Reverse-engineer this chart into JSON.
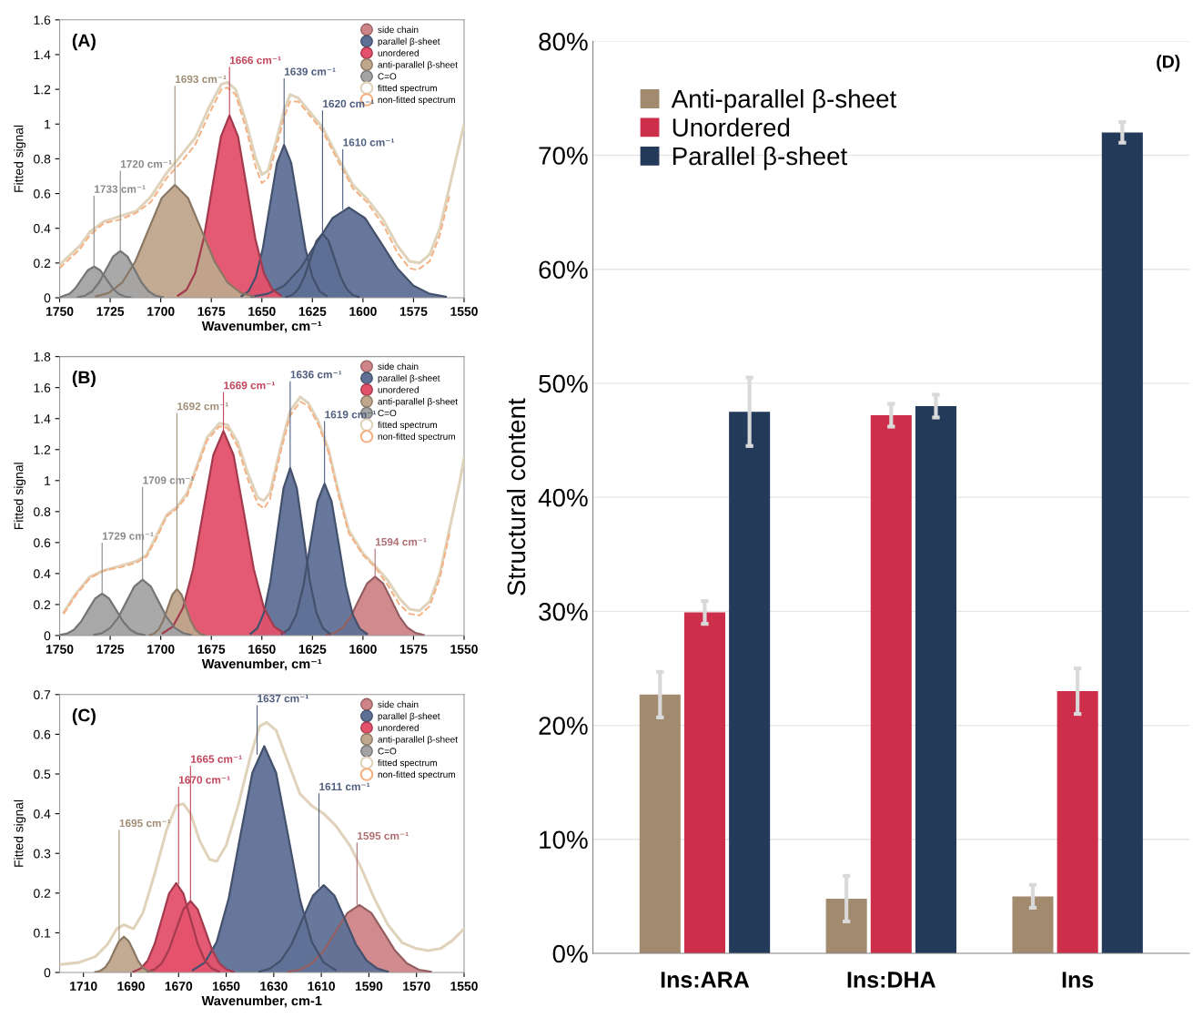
{
  "chart_data": [
    {
      "type": "area",
      "xlabel": "Wavenumber, cm⁻¹",
      "ylabel": "Fitted signal",
      "xlim": [
        1750,
        1550
      ],
      "xticks": [
        1750,
        1725,
        1700,
        1675,
        1650,
        1625,
        1600,
        1575,
        1550
      ],
      "ylim": [
        0,
        1.6
      ],
      "yticks": [
        0,
        0.2,
        0.4,
        0.6,
        0.8,
        1,
        1.2,
        1.4,
        1.6
      ],
      "legend": "top right",
      "grid": false,
      "annotations": [
        "(A)",
        {
          "text": "1733 cm⁻¹",
          "x": 1733,
          "y": 0.18
        },
        {
          "text": "1720 cm⁻¹",
          "x": 1720,
          "y": 0.27
        },
        {
          "text": "1693 cm⁻¹",
          "x": 1693,
          "y": 0.65
        },
        {
          "text": "1666 cm⁻¹",
          "x": 1666,
          "y": 1.05
        },
        {
          "text": "1639 cm⁻¹",
          "x": 1639,
          "y": 0.88
        },
        {
          "text": "1620 cm⁻¹",
          "x": 1620,
          "y": 0.37
        },
        {
          "text": "1610 cm⁻¹",
          "x": 1610,
          "y": 0.51
        }
      ],
      "series": [
        {
          "name": "side chain",
          "color": "#cf8487"
        },
        {
          "name": "parallel β-sheet",
          "color": "#5e7096",
          "x": [
            1655,
            1647,
            1639,
            1631,
            1623,
            1615,
            1607,
            1599,
            1591,
            1583,
            1575,
            1567,
            1559
          ],
          "values": [
            0.006,
            0.023,
            0.07,
            0.169,
            0.315,
            0.459,
            0.52,
            0.459,
            0.315,
            0.169,
            0.07,
            0.023,
            0.006
          ]
        },
        {
          "color": "#5f7197",
          "x": [
            1660,
            1656.5,
            1653,
            1649.5,
            1646,
            1642.5,
            1639,
            1635.5,
            1632,
            1628.5,
            1625,
            1621.5,
            1618
          ],
          "values": [
            0.01,
            0.039,
            0.119,
            0.286,
            0.534,
            0.777,
            0.88,
            0.777,
            0.534,
            0.286,
            0.119,
            0.039,
            0.01
          ]
        },
        {
          "color": "#5d6f95",
          "x": [
            1638,
            1635,
            1632,
            1629,
            1626,
            1623,
            1620,
            1617,
            1614,
            1611,
            1608,
            1605,
            1602
          ],
          "values": [
            0.004,
            0.016,
            0.05,
            0.12,
            0.224,
            0.327,
            0.37,
            0.327,
            0.224,
            0.12,
            0.05,
            0.016,
            0.004
          ]
        },
        {
          "name": "unordered",
          "color": "#e3516b",
          "x": [
            1691.5,
            1687.25,
            1683,
            1678.75,
            1674.5,
            1670.25,
            1666,
            1661.75,
            1657.5,
            1653.25,
            1649,
            1644.75,
            1640.5
          ],
          "values": [
            0.012,
            0.046,
            0.142,
            0.341,
            0.637,
            0.927,
            1.05,
            0.927,
            0.637,
            0.341,
            0.142,
            0.046,
            0.012
          ]
        },
        {
          "name": "anti-parallel β-sheet",
          "color": "#bfa78c",
          "x": [
            1732,
            1725.5,
            1719,
            1712.5,
            1706,
            1699.5,
            1693,
            1686.5,
            1680,
            1673.5,
            1667,
            1660.5,
            1654
          ],
          "values": [
            0.007,
            0.029,
            0.088,
            0.211,
            0.394,
            0.574,
            0.65,
            0.574,
            0.394,
            0.211,
            0.088,
            0.029,
            0.007
          ]
        },
        {
          "name": "C=O",
          "color": "#a3a3a3",
          "x": [
            1750,
            1745,
            1742,
            1739,
            1736,
            1733,
            1730,
            1727,
            1724,
            1721,
            1718,
            1715
          ],
          "values": [
            0.003,
            0.024,
            0.058,
            0.109,
            0.159,
            0.18,
            0.159,
            0.109,
            0.058,
            0.024,
            0.008,
            0.002
          ]
        },
        {
          "color": "#a4a4a4",
          "x": [
            1741,
            1737.5,
            1734,
            1730.5,
            1727,
            1723.5,
            1720,
            1716.5,
            1713,
            1709.5,
            1706,
            1702.5,
            1699
          ],
          "values": [
            0.003,
            0.012,
            0.037,
            0.088,
            0.164,
            0.238,
            0.27,
            0.238,
            0.164,
            0.088,
            0.037,
            0.012,
            0.003
          ]
        },
        {
          "name": "fitted spectrum",
          "type": "line",
          "color": "#e0d3bc",
          "line_style": "solid",
          "x": [
            1750,
            1740,
            1735,
            1728,
            1720,
            1712,
            1705,
            1697,
            1690,
            1683,
            1676,
            1670,
            1667,
            1663,
            1658,
            1653,
            1650,
            1647,
            1643,
            1639,
            1636,
            1632,
            1627,
            1620,
            1612,
            1605,
            1598,
            1590,
            1583,
            1577,
            1572,
            1567,
            1562,
            1557,
            1552,
            1550
          ],
          "values": [
            0.19,
            0.3,
            0.38,
            0.44,
            0.47,
            0.5,
            0.58,
            0.72,
            0.82,
            0.92,
            1.1,
            1.23,
            1.24,
            1.2,
            1.02,
            0.8,
            0.71,
            0.73,
            0.9,
            1.08,
            1.17,
            1.15,
            1.08,
            0.98,
            0.8,
            0.65,
            0.57,
            0.45,
            0.3,
            0.21,
            0.2,
            0.25,
            0.4,
            0.65,
            0.9,
            1.0
          ]
        },
        {
          "name": "non-fitted spectrum",
          "type": "line",
          "color": "#f4b183",
          "line_style": "dashed",
          "x": [
            1750,
            1740,
            1735,
            1728,
            1720,
            1712,
            1705,
            1697,
            1690,
            1683,
            1676,
            1670,
            1667,
            1663,
            1658,
            1653,
            1650,
            1647,
            1643,
            1639,
            1636,
            1632,
            1627,
            1620,
            1612,
            1605,
            1598,
            1590,
            1583,
            1577,
            1573,
            1567,
            1562,
            1557
          ],
          "values": [
            0.17,
            0.28,
            0.36,
            0.43,
            0.45,
            0.49,
            0.55,
            0.69,
            0.78,
            0.88,
            1.06,
            1.2,
            1.21,
            1.17,
            0.98,
            0.75,
            0.66,
            0.69,
            0.86,
            1.04,
            1.13,
            1.13,
            1.06,
            0.96,
            0.78,
            0.63,
            0.55,
            0.42,
            0.26,
            0.17,
            0.16,
            0.21,
            0.36,
            0.6
          ]
        }
      ]
    },
    {
      "type": "area",
      "xlabel": "Wavenumber, cm⁻¹",
      "ylabel": "Fitted signal",
      "xlim": [
        1750,
        1550
      ],
      "xticks": [
        1750,
        1725,
        1700,
        1675,
        1650,
        1625,
        1600,
        1575,
        1550
      ],
      "ylim": [
        0,
        1.8
      ],
      "yticks": [
        0,
        0.2,
        0.4,
        0.6,
        0.8,
        1,
        1.2,
        1.4,
        1.6,
        1.8
      ],
      "legend": "top right",
      "grid": false,
      "annotations": [
        "(B)",
        {
          "text": "1729 cm⁻¹",
          "x": 1729,
          "y": 0.27
        },
        {
          "text": "1709 cm⁻¹",
          "x": 1709,
          "y": 0.36
        },
        {
          "text": "1692 cm⁻¹",
          "x": 1692,
          "y": 0.3
        },
        {
          "text": "1669 cm⁻¹",
          "x": 1669,
          "y": 1.32
        },
        {
          "text": "1636 cm⁻¹",
          "x": 1636,
          "y": 1.08
        },
        {
          "text": "1619 cm⁻¹",
          "x": 1619,
          "y": 0.98
        },
        {
          "text": "1594 cm⁻¹",
          "x": 1594,
          "y": 0.38
        }
      ],
      "series": [
        {
          "name": "side chain",
          "color": "#cf8487",
          "x": [
            1618,
            1614,
            1610,
            1606,
            1602,
            1598,
            1594,
            1590,
            1586,
            1582,
            1578,
            1574,
            1570
          ],
          "values": [
            0.004,
            0.017,
            0.051,
            0.123,
            0.23,
            0.335,
            0.38,
            0.335,
            0.23,
            0.123,
            0.051,
            0.017,
            0.004
          ]
        },
        {
          "name": "parallel β-sheet",
          "color": "#5e7096",
          "x": [
            1655.5,
            1652.25,
            1649,
            1645.75,
            1642.5,
            1639.25,
            1636,
            1632.75,
            1629.5,
            1626.25,
            1623,
            1619.75,
            1616.5
          ],
          "values": [
            0.012,
            0.047,
            0.146,
            0.351,
            0.655,
            0.953,
            1.08,
            0.953,
            0.655,
            0.351,
            0.146,
            0.047,
            0.012
          ]
        },
        {
          "color": "#5f7197",
          "x": [
            1640,
            1636.5,
            1633,
            1629.5,
            1626,
            1622.5,
            1619,
            1615.5,
            1612,
            1608.5,
            1605,
            1601.5,
            1598
          ],
          "values": [
            0.011,
            0.043,
            0.133,
            0.318,
            0.594,
            0.865,
            0.98,
            0.865,
            0.594,
            0.318,
            0.133,
            0.043,
            0.011
          ]
        },
        {
          "name": "unordered",
          "color": "#e3516b",
          "x": [
            1699,
            1694,
            1689,
            1684,
            1679,
            1674,
            1669,
            1664,
            1659,
            1654,
            1649,
            1644,
            1639
          ],
          "values": [
            0.015,
            0.058,
            0.179,
            0.429,
            0.801,
            1.165,
            1.32,
            1.165,
            0.801,
            0.429,
            0.179,
            0.058,
            0.015
          ]
        },
        {
          "name": "anti-parallel β-sheet",
          "color": "#bfa78c",
          "x": [
            1705.5,
            1703.25,
            1701,
            1698.75,
            1696.5,
            1694.25,
            1692,
            1689.75,
            1687.5,
            1685.25,
            1683,
            1680.75,
            1678.5
          ],
          "values": [
            0.003,
            0.013,
            0.041,
            0.097,
            0.182,
            0.265,
            0.3,
            0.265,
            0.182,
            0.097,
            0.041,
            0.013,
            0.003
          ]
        },
        {
          "name": "C=O",
          "color": "#a3a3a3",
          "x": [
            1750,
            1746.5,
            1743,
            1739.5,
            1736,
            1732.5,
            1729,
            1725.5,
            1722,
            1718.5,
            1715,
            1711.5,
            1708
          ],
          "values": [
            0.003,
            0.012,
            0.037,
            0.088,
            0.164,
            0.238,
            0.27,
            0.238,
            0.164,
            0.088,
            0.037,
            0.012,
            0.003
          ]
        },
        {
          "color": "#a4a4a4",
          "x": [
            1733,
            1729,
            1725,
            1721,
            1717,
            1713,
            1709,
            1705,
            1701,
            1697,
            1693,
            1689,
            1685
          ],
          "values": [
            0.004,
            0.016,
            0.049,
            0.117,
            0.218,
            0.318,
            0.36,
            0.318,
            0.218,
            0.117,
            0.049,
            0.016,
            0.004
          ]
        },
        {
          "name": "fitted spectrum",
          "type": "line",
          "color": "#e0d3bc",
          "line_style": "solid",
          "x": [
            1748,
            1742,
            1735,
            1728,
            1720,
            1712,
            1707,
            1702,
            1697,
            1692,
            1687,
            1682,
            1677,
            1671,
            1667,
            1662,
            1657,
            1652,
            1649,
            1646,
            1641,
            1636,
            1631,
            1627,
            1622,
            1617,
            1612,
            1607,
            1600,
            1594,
            1588,
            1582,
            1577,
            1572,
            1567,
            1562,
            1557,
            1552,
            1550
          ],
          "values": [
            0.15,
            0.27,
            0.38,
            0.42,
            0.45,
            0.48,
            0.52,
            0.65,
            0.78,
            0.83,
            0.92,
            1.1,
            1.28,
            1.37,
            1.36,
            1.25,
            1.05,
            0.89,
            0.87,
            0.92,
            1.2,
            1.45,
            1.54,
            1.5,
            1.38,
            1.2,
            0.92,
            0.68,
            0.53,
            0.45,
            0.36,
            0.24,
            0.17,
            0.16,
            0.22,
            0.4,
            0.7,
            1.0,
            1.15
          ]
        },
        {
          "name": "non-fitted spectrum",
          "type": "line",
          "color": "#f4b183",
          "line_style": "dashed",
          "x": [
            1748,
            1742,
            1735,
            1728,
            1720,
            1712,
            1707,
            1702,
            1697,
            1692,
            1687,
            1682,
            1677,
            1671,
            1667,
            1662,
            1657,
            1652,
            1649,
            1646,
            1641,
            1636,
            1631,
            1627,
            1622,
            1617,
            1612,
            1607,
            1600,
            1594,
            1588,
            1582,
            1577,
            1572,
            1567,
            1562,
            1557
          ],
          "values": [
            0.14,
            0.26,
            0.37,
            0.42,
            0.44,
            0.47,
            0.51,
            0.63,
            0.77,
            0.82,
            0.9,
            1.08,
            1.26,
            1.35,
            1.34,
            1.22,
            1.01,
            0.85,
            0.82,
            0.88,
            1.17,
            1.42,
            1.51,
            1.48,
            1.36,
            1.18,
            0.9,
            0.66,
            0.52,
            0.44,
            0.33,
            0.2,
            0.14,
            0.13,
            0.19,
            0.37,
            0.67
          ]
        }
      ]
    },
    {
      "type": "area",
      "xlabel": "Wavenumber, cm-1",
      "ylabel": "Fitted signal",
      "xlim": [
        1720,
        1550
      ],
      "xticks": [
        1710,
        1690,
        1670,
        1650,
        1630,
        1610,
        1590,
        1570,
        1550
      ],
      "ylim": [
        0,
        0.7
      ],
      "yticks": [
        0,
        0.1,
        0.2,
        0.3,
        0.4,
        0.5,
        0.6,
        0.7
      ],
      "legend": "top right",
      "grid": false,
      "annotations": [
        "(C)",
        {
          "text": "1695 cm⁻¹",
          "x": 1695,
          "y": 0.079
        },
        {
          "text": "1670 cm⁻¹",
          "x": 1670,
          "y": 0.223
        },
        {
          "text": "1665 cm⁻¹",
          "x": 1665,
          "y": 0.18
        },
        {
          "text": "1637 cm⁻¹",
          "x": 1637,
          "y": 0.55
        },
        {
          "text": "1611 cm⁻¹",
          "x": 1611,
          "y": 0.215
        },
        {
          "text": "1595 cm⁻¹",
          "x": 1595,
          "y": 0.168
        }
      ],
      "series": [
        {
          "name": "side chain",
          "color": "#cf8487",
          "x": [
            1624,
            1619,
            1614,
            1609,
            1604,
            1599,
            1594,
            1589,
            1584,
            1579,
            1574,
            1569,
            1564
          ],
          "values": [
            0.002,
            0.007,
            0.023,
            0.055,
            0.103,
            0.15,
            0.17,
            0.15,
            0.103,
            0.055,
            0.023,
            0.007,
            0.002
          ]
        },
        {
          "name": "parallel β-sheet",
          "color": "#5e7096",
          "x": [
            1664,
            1659,
            1654,
            1649,
            1644,
            1639,
            1634,
            1629,
            1624,
            1619,
            1614,
            1609,
            1604
          ],
          "values": [
            0.006,
            0.025,
            0.077,
            0.185,
            0.346,
            0.503,
            0.57,
            0.503,
            0.346,
            0.185,
            0.077,
            0.025,
            0.006
          ]
        },
        {
          "color": "#5f7197",
          "x": [
            1636,
            1631.5,
            1627,
            1622.5,
            1618,
            1613.5,
            1609,
            1604.5,
            1600,
            1595.5,
            1591,
            1586.5,
            1582
          ],
          "values": [
            0.002,
            0.01,
            0.03,
            0.071,
            0.133,
            0.194,
            0.22,
            0.194,
            0.133,
            0.071,
            0.03,
            0.01,
            0.002
          ]
        },
        {
          "name": "unordered",
          "color": "#e3516b",
          "x": [
            1689,
            1686,
            1683,
            1680,
            1677,
            1674,
            1671,
            1668,
            1665,
            1662,
            1659,
            1656,
            1653
          ],
          "values": [
            0.002,
            0.01,
            0.03,
            0.073,
            0.136,
            0.199,
            0.225,
            0.199,
            0.136,
            0.073,
            0.03,
            0.01,
            0.002
          ]
        },
        {
          "color": "#e4526c",
          "x": [
            1683,
            1680,
            1677,
            1674,
            1671,
            1668,
            1665,
            1662,
            1659,
            1656,
            1653,
            1650,
            1647
          ],
          "values": [
            0.002,
            0.008,
            0.024,
            0.058,
            0.109,
            0.159,
            0.18,
            0.159,
            0.109,
            0.058,
            0.024,
            0.008,
            0.002
          ]
        },
        {
          "name": "anti-parallel β-sheet",
          "color": "#bfa78c",
          "x": [
            1705,
            1703,
            1701,
            1699,
            1697,
            1695,
            1693,
            1691,
            1689,
            1687,
            1685,
            1683,
            1681
          ],
          "values": [
            0.001,
            0.004,
            0.012,
            0.029,
            0.055,
            0.079,
            0.09,
            0.079,
            0.055,
            0.029,
            0.012,
            0.004,
            0.001
          ]
        },
        {
          "name": "C=O",
          "color": "#a3a3a3"
        },
        {
          "name": "fitted spectrum",
          "type": "line",
          "color": "#e0d3bc",
          "line_style": "solid",
          "x": [
            1720,
            1712,
            1705,
            1700,
            1696,
            1693,
            1689,
            1685,
            1680,
            1675,
            1671,
            1668,
            1665,
            1661,
            1657,
            1654,
            1650,
            1645,
            1640,
            1636,
            1633,
            1629,
            1624,
            1619,
            1614,
            1609,
            1604,
            1598,
            1593,
            1588,
            1582,
            1576,
            1570,
            1565,
            1560,
            1555,
            1550
          ],
          "values": [
            0.02,
            0.025,
            0.04,
            0.07,
            0.11,
            0.12,
            0.11,
            0.15,
            0.25,
            0.36,
            0.42,
            0.425,
            0.4,
            0.33,
            0.285,
            0.28,
            0.32,
            0.42,
            0.54,
            0.62,
            0.63,
            0.61,
            0.53,
            0.45,
            0.42,
            0.4,
            0.37,
            0.32,
            0.26,
            0.19,
            0.12,
            0.075,
            0.06,
            0.055,
            0.06,
            0.08,
            0.11
          ]
        },
        {
          "name": "non-fitted spectrum",
          "type": "line",
          "color": "#f4b183",
          "line_style": "dashed"
        }
      ]
    },
    {
      "type": "bar",
      "ylabel": "Structural content",
      "categories": [
        "Ins:ARA",
        "Ins:DHA",
        "Ins"
      ],
      "ylim": [
        0,
        80
      ],
      "yticks": [
        {
          "value": 0,
          "label": "0%"
        },
        {
          "value": 10,
          "label": "10%"
        },
        {
          "value": 20,
          "label": "20%"
        },
        {
          "value": 30,
          "label": "30%"
        },
        {
          "value": 40,
          "label": "40%"
        },
        {
          "value": 50,
          "label": "50%"
        },
        {
          "value": 60,
          "label": "60%"
        },
        {
          "value": 70,
          "label": "70%"
        },
        {
          "value": 80,
          "label": "80%"
        }
      ],
      "legend": "top left",
      "grid": "y",
      "annotations": [
        "(D)"
      ],
      "series": [
        {
          "name": "Anti-parallel β-sheet",
          "color": "#a28a6e",
          "values": [
            22.7,
            4.8,
            5.0
          ],
          "errors": [
            2.0,
            2.0,
            1.0
          ]
        },
        {
          "name": "Unordered",
          "color": "#cd2f4a",
          "values": [
            29.9,
            47.2,
            23.0
          ],
          "errors": [
            1.0,
            1.0,
            2.0
          ]
        },
        {
          "name": "Parallel β-sheet",
          "color": "#243a5a",
          "values": [
            47.5,
            48.0,
            72.0
          ],
          "errors": [
            3.0,
            1.0,
            0.9
          ]
        }
      ]
    }
  ]
}
